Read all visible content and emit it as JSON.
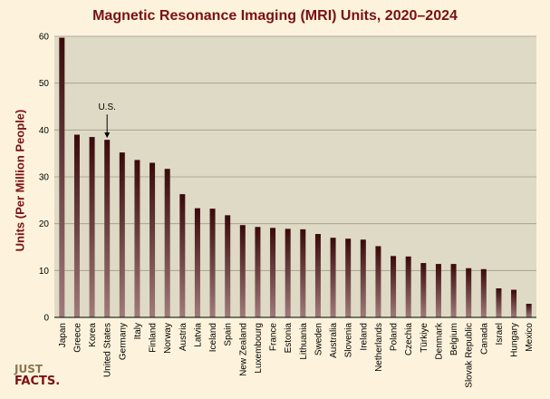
{
  "chart_data": {
    "type": "bar",
    "title": "Magnetic Resonance Imaging (MRI) Units, 2020–2024",
    "xlabel": "",
    "ylabel": "Units (Per Million People)",
    "ylim": [
      0,
      60
    ],
    "yticks": [
      "0",
      "10",
      "20",
      "30",
      "40",
      "50",
      "60"
    ],
    "grid": true,
    "categories": [
      "Japan",
      "Greece",
      "Korea",
      "United States",
      "Germany",
      "Italy",
      "Finland",
      "Norway",
      "Austria",
      "Latvia",
      "Iceland",
      "Spain",
      "New Zealand",
      "Luxembourg",
      "France",
      "Estonia",
      "Lithuania",
      "Sweden",
      "Australia",
      "Slovenia",
      "Ireland",
      "Netherlands",
      "Poland",
      "Czechia",
      "Türkiye",
      "Denmark",
      "Belgium",
      "Slovak Republic",
      "Canada",
      "Israel",
      "Hungary",
      "Mexico"
    ],
    "values": [
      59.7,
      39.0,
      38.5,
      37.9,
      35.2,
      33.6,
      33.0,
      31.7,
      26.3,
      23.3,
      23.2,
      21.8,
      19.7,
      19.3,
      19.1,
      18.9,
      18.8,
      17.8,
      17.0,
      16.8,
      16.6,
      15.2,
      13.1,
      13.0,
      11.6,
      11.4,
      11.4,
      10.5,
      10.3,
      6.2,
      5.9,
      2.9
    ],
    "colors": {
      "bar_dark": "#3a0a0a",
      "bar_light": "#a07a7a",
      "plot_bg": "#dedac5",
      "grid": "#9e9a86",
      "title": "#7b0f12"
    },
    "annotation": {
      "text": "U.S.",
      "category": "United States"
    }
  },
  "logo": {
    "line1": "JUST",
    "line2": "FACTS."
  }
}
